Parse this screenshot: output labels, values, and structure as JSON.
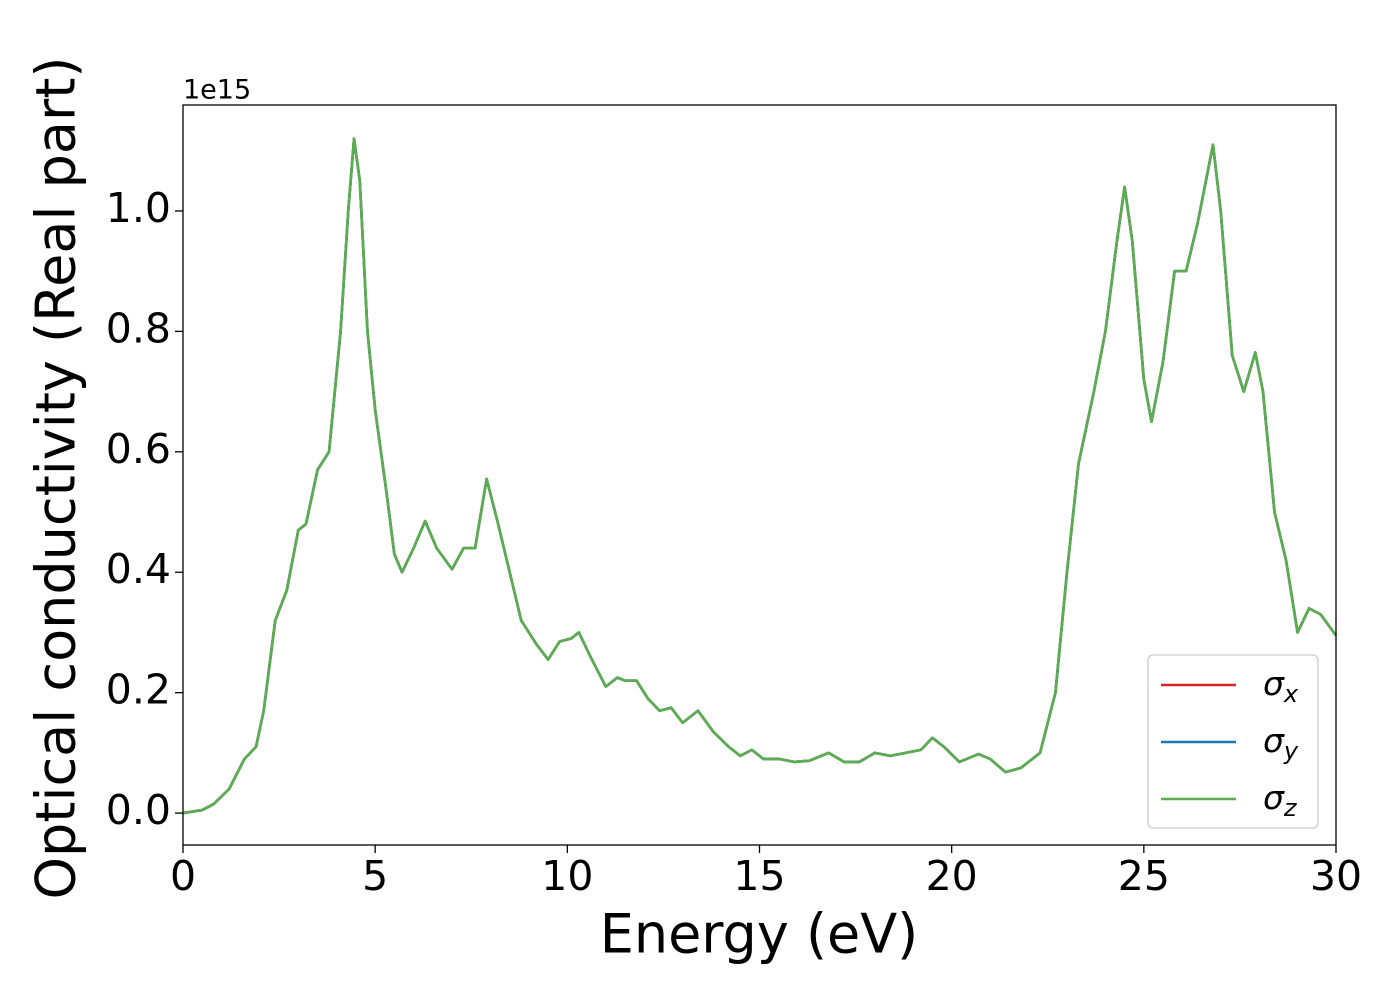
{
  "chart_data": {
    "type": "line",
    "xlabel": "Energy (eV)",
    "ylabel": "Optical conductivity (Real part)",
    "y_offset_label": "1e15",
    "xlim": [
      0,
      30
    ],
    "ylim": [
      -0.053,
      1.176
    ],
    "xticks": [
      0,
      5,
      10,
      15,
      20,
      25,
      30
    ],
    "yticks": [
      {
        "value": 0,
        "label": "0.0"
      },
      {
        "value": 0.2,
        "label": "0.2"
      },
      {
        "value": 0.4,
        "label": "0.4"
      },
      {
        "value": 0.6,
        "label": "0.6"
      },
      {
        "value": 0.8,
        "label": "0.8"
      },
      {
        "value": 1.0,
        "label": "1.0"
      }
    ],
    "legend": "lower right",
    "x": [
      0,
      0.5,
      0.8,
      1.2,
      1.6,
      1.9,
      2.1,
      2.4,
      2.7,
      3.0,
      3.2,
      3.5,
      3.8,
      4.1,
      4.3,
      4.45,
      4.6,
      4.8,
      5.0,
      5.3,
      5.5,
      5.7,
      6.0,
      6.3,
      6.6,
      7.0,
      7.3,
      7.6,
      7.9,
      8.2,
      8.5,
      8.8,
      9.2,
      9.5,
      9.8,
      10.1,
      10.3,
      10.6,
      11.0,
      11.3,
      11.5,
      11.8,
      12.1,
      12.4,
      12.7,
      13.0,
      13.4,
      13.8,
      14.2,
      14.5,
      14.8,
      15.1,
      15.5,
      15.9,
      16.3,
      16.8,
      17.2,
      17.6,
      18.0,
      18.4,
      18.8,
      19.2,
      19.5,
      19.8,
      20.2,
      20.7,
      21.0,
      21.4,
      21.8,
      22.3,
      22.7,
      23.0,
      23.3,
      23.7,
      24.0,
      24.3,
      24.5,
      24.7,
      25.0,
      25.2,
      25.5,
      25.8,
      26.1,
      26.4,
      26.8,
      27.0,
      27.3,
      27.6,
      27.9,
      28.1,
      28.4,
      28.7,
      29.0,
      29.3,
      29.6,
      30.0
    ],
    "series": [
      {
        "name": "σx",
        "color": "#d62728",
        "values": [
          0,
          0.005,
          0.015,
          0.04,
          0.09,
          0.11,
          0.17,
          0.32,
          0.37,
          0.47,
          0.48,
          0.57,
          0.6,
          0.8,
          1.0,
          1.12,
          1.05,
          0.8,
          0.67,
          0.53,
          0.43,
          0.4,
          0.44,
          0.485,
          0.44,
          0.405,
          0.44,
          0.44,
          0.555,
          0.48,
          0.4,
          0.32,
          0.28,
          0.255,
          0.285,
          0.29,
          0.3,
          0.26,
          0.21,
          0.225,
          0.22,
          0.22,
          0.19,
          0.17,
          0.175,
          0.15,
          0.17,
          0.135,
          0.11,
          0.095,
          0.105,
          0.09,
          0.09,
          0.085,
          0.087,
          0.1,
          0.085,
          0.085,
          0.1,
          0.095,
          0.1,
          0.105,
          0.125,
          0.11,
          0.085,
          0.098,
          0.09,
          0.068,
          0.075,
          0.1,
          0.2,
          0.4,
          0.58,
          0.7,
          0.8,
          0.95,
          1.04,
          0.95,
          0.72,
          0.65,
          0.75,
          0.9,
          0.9,
          0.98,
          1.11,
          1.0,
          0.76,
          0.7,
          0.765,
          0.7,
          0.5,
          0.42,
          0.3,
          0.34,
          0.33,
          0.295
        ]
      },
      {
        "name": "σy",
        "color": "#1f77b4",
        "values": [
          0,
          0.005,
          0.015,
          0.04,
          0.09,
          0.11,
          0.17,
          0.32,
          0.37,
          0.47,
          0.48,
          0.57,
          0.6,
          0.8,
          1.0,
          1.12,
          1.05,
          0.8,
          0.67,
          0.53,
          0.43,
          0.4,
          0.44,
          0.485,
          0.44,
          0.405,
          0.44,
          0.44,
          0.555,
          0.48,
          0.4,
          0.32,
          0.28,
          0.255,
          0.285,
          0.29,
          0.3,
          0.26,
          0.21,
          0.225,
          0.22,
          0.22,
          0.19,
          0.17,
          0.175,
          0.15,
          0.17,
          0.135,
          0.11,
          0.095,
          0.105,
          0.09,
          0.09,
          0.085,
          0.087,
          0.1,
          0.085,
          0.085,
          0.1,
          0.095,
          0.1,
          0.105,
          0.125,
          0.11,
          0.085,
          0.098,
          0.09,
          0.068,
          0.075,
          0.1,
          0.2,
          0.4,
          0.58,
          0.7,
          0.8,
          0.95,
          1.04,
          0.95,
          0.72,
          0.65,
          0.75,
          0.9,
          0.9,
          0.98,
          1.11,
          1.0,
          0.76,
          0.7,
          0.765,
          0.7,
          0.5,
          0.42,
          0.3,
          0.34,
          0.33,
          0.295
        ]
      },
      {
        "name": "σz",
        "color": "#5aae4f",
        "values": [
          0,
          0.005,
          0.015,
          0.04,
          0.09,
          0.11,
          0.17,
          0.32,
          0.37,
          0.47,
          0.48,
          0.57,
          0.6,
          0.8,
          1.0,
          1.12,
          1.05,
          0.8,
          0.67,
          0.53,
          0.43,
          0.4,
          0.44,
          0.485,
          0.44,
          0.405,
          0.44,
          0.44,
          0.555,
          0.48,
          0.4,
          0.32,
          0.28,
          0.255,
          0.285,
          0.29,
          0.3,
          0.26,
          0.21,
          0.225,
          0.22,
          0.22,
          0.19,
          0.17,
          0.175,
          0.15,
          0.17,
          0.135,
          0.11,
          0.095,
          0.105,
          0.09,
          0.09,
          0.085,
          0.087,
          0.1,
          0.085,
          0.085,
          0.1,
          0.095,
          0.1,
          0.105,
          0.125,
          0.11,
          0.085,
          0.098,
          0.09,
          0.068,
          0.075,
          0.1,
          0.2,
          0.4,
          0.58,
          0.7,
          0.8,
          0.95,
          1.04,
          0.95,
          0.72,
          0.65,
          0.75,
          0.9,
          0.9,
          0.98,
          1.11,
          1.0,
          0.76,
          0.7,
          0.765,
          0.7,
          0.5,
          0.42,
          0.3,
          0.34,
          0.33,
          0.295
        ]
      }
    ]
  }
}
